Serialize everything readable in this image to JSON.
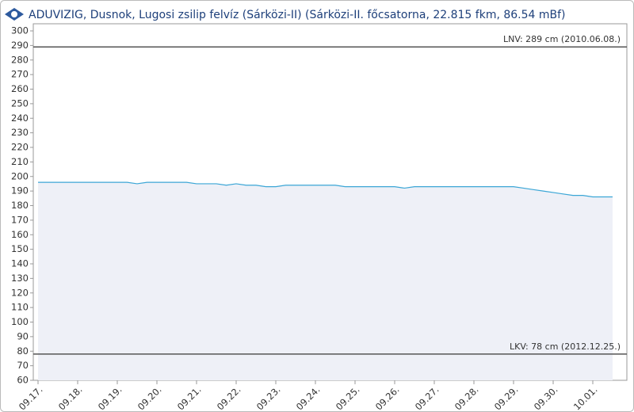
{
  "chart_data": {
    "type": "line",
    "title": "ADUVIZIG, Dusnok, Lugosi zsilip felvíz  (Sárközi-II) (Sárközi-II. főcsatorna, 22.815 fkm, 86.54 mBf)",
    "categories": [
      "09.17.",
      null,
      null,
      null,
      "09.18.",
      null,
      null,
      null,
      "09.19.",
      null,
      null,
      null,
      "09.20.",
      null,
      null,
      null,
      "09.21.",
      null,
      null,
      null,
      "09.22.",
      null,
      null,
      null,
      "09.23.",
      null,
      null,
      null,
      "09.24.",
      null,
      null,
      null,
      "09.25.",
      null,
      null,
      null,
      "09.26.",
      null,
      null,
      null,
      "09.27.",
      null,
      null,
      null,
      "09.28.",
      null,
      null,
      null,
      "09.29.",
      null,
      null,
      null,
      "09.30.",
      null,
      null,
      null,
      "10.01.",
      null,
      null
    ],
    "series": [
      {
        "color": "#3ba6d6",
        "area_color": "#eef0f7",
        "values": [
          196,
          196,
          196,
          196,
          196,
          196,
          196,
          196,
          196,
          196,
          195,
          196,
          196,
          196,
          196,
          196,
          195,
          195,
          195,
          194,
          195,
          194,
          194,
          193,
          193,
          194,
          194,
          194,
          194,
          194,
          194,
          193,
          193,
          193,
          193,
          193,
          193,
          192,
          193,
          193,
          193,
          193,
          193,
          193,
          193,
          193,
          193,
          193,
          193,
          192,
          191,
          190,
          189,
          188,
          187,
          187,
          186,
          186,
          186
        ]
      }
    ],
    "ylim": [
      60,
      300
    ],
    "yticks": [
      60,
      70,
      80,
      90,
      100,
      110,
      120,
      130,
      140,
      150,
      160,
      170,
      180,
      190,
      200,
      210,
      220,
      230,
      240,
      250,
      260,
      270,
      280,
      290,
      300
    ],
    "grid": false,
    "reference_lines": [
      {
        "value": 289,
        "label": "LNV: 289 cm (2010.06.08.)"
      },
      {
        "value": 78,
        "label": "LKV: 78 cm (2012.12.25.)"
      }
    ]
  }
}
